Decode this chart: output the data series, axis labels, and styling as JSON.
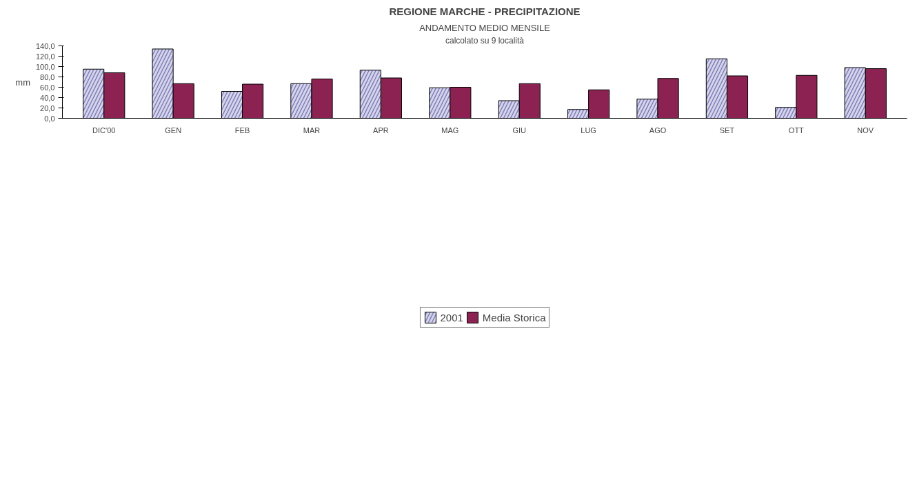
{
  "chart_data": {
    "type": "bar",
    "title": "REGIONE MARCHE - PRECIPITAZIONE",
    "subtitle": "ANDAMENTO MEDIO MENSILE",
    "annotations": [
      "calcolato su 9 località"
    ],
    "ylabel": "mm",
    "categories": [
      "DIC'00",
      "GEN",
      "FEB",
      "MAR",
      "APR",
      "MAG",
      "GIU",
      "LUG",
      "AGO",
      "SET",
      "OTT",
      "NOV"
    ],
    "series": [
      {
        "name": "2001",
        "color": "#7b7bd6",
        "values": [
          95,
          134,
          52,
          67,
          93,
          59,
          34,
          17,
          37,
          115,
          21,
          98
        ]
      },
      {
        "name": "Media Storica",
        "color": "#8b2252",
        "values": [
          88,
          67,
          66,
          76,
          78,
          60,
          67,
          55,
          77,
          82,
          83,
          96
        ]
      }
    ],
    "ylim": [
      0,
      140
    ],
    "yticks": [
      {
        "value": 0,
        "label": "0,0"
      },
      {
        "value": 20,
        "label": "20,0"
      },
      {
        "value": 40,
        "label": "40,0"
      },
      {
        "value": 60,
        "label": "60,0"
      },
      {
        "value": 80,
        "label": "80,0"
      },
      {
        "value": 100,
        "label": "100,0"
      },
      {
        "value": 120,
        "label": "120,0"
      },
      {
        "value": 140,
        "label": "140,0"
      }
    ],
    "grid": false,
    "legend": "bottom"
  }
}
